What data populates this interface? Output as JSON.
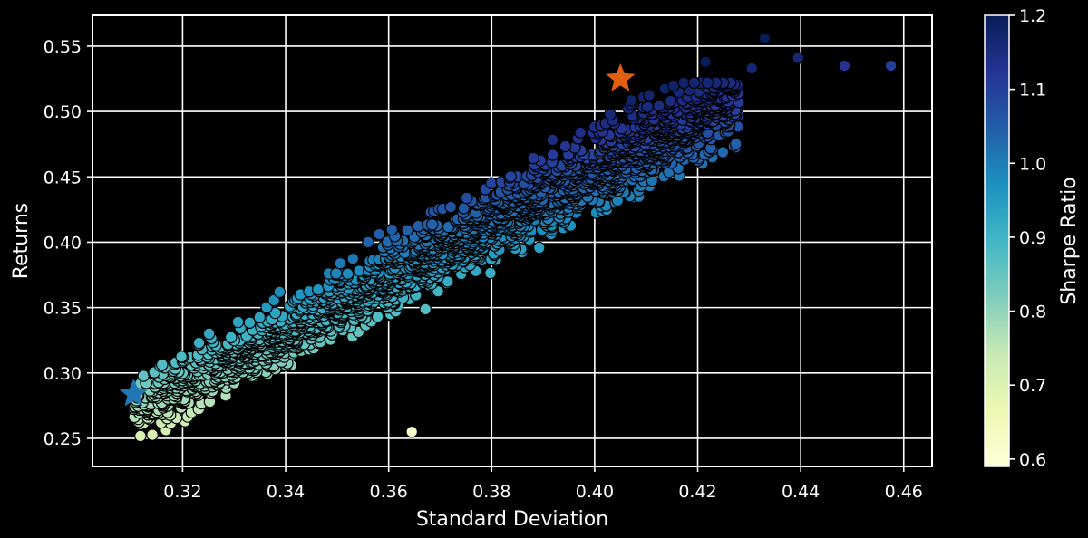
{
  "chart_data": {
    "type": "scatter",
    "title": "",
    "xlabel": "Standard Deviation",
    "ylabel": "Returns",
    "xlim": [
      0.3025,
      0.4655
    ],
    "ylim": [
      0.2285,
      0.5735
    ],
    "xticks": [
      "0.32",
      "0.34",
      "0.36",
      "0.38",
      "0.40",
      "0.42",
      "0.44",
      "0.46"
    ],
    "yticks": [
      "0.25",
      "0.30",
      "0.35",
      "0.40",
      "0.45",
      "0.50",
      "0.55"
    ],
    "grid": true,
    "background": "#000000",
    "colorbar": {
      "label": "Sharpe Ratio",
      "range": [
        0.59,
        1.2
      ],
      "ticks": [
        "0.6",
        "0.7",
        "0.8",
        "0.9",
        "1.0",
        "1.1",
        "1.2"
      ],
      "colormap": "YlGnBu",
      "stops": [
        "#ffffd9",
        "#edf8b1",
        "#c7e9b4",
        "#7fcdbb",
        "#41b6c4",
        "#1d91c0",
        "#225ea8",
        "#253494",
        "#081d58"
      ]
    },
    "points_summary": {
      "count": 10000,
      "x_range": [
        0.31,
        0.458
      ],
      "y_range": [
        0.244,
        0.556
      ],
      "description": "Efficient-frontier style cloud; returns rise with standard deviation, colored by Sharpe ratio"
    },
    "outliers": [
      {
        "x": 0.433,
        "y": 0.556
      },
      {
        "x": 0.4395,
        "y": 0.541
      },
      {
        "x": 0.4485,
        "y": 0.535
      },
      {
        "x": 0.4575,
        "y": 0.535
      },
      {
        "x": 0.4305,
        "y": 0.533
      },
      {
        "x": 0.4215,
        "y": 0.538
      },
      {
        "x": 0.3645,
        "y": 0.255
      }
    ],
    "markers": [
      {
        "name": "max-sharpe",
        "x": 0.405,
        "y": 0.525,
        "color": "#e06010"
      },
      {
        "name": "min-volatility",
        "x": 0.3105,
        "y": 0.284,
        "color": "#1f78b4"
      }
    ]
  }
}
